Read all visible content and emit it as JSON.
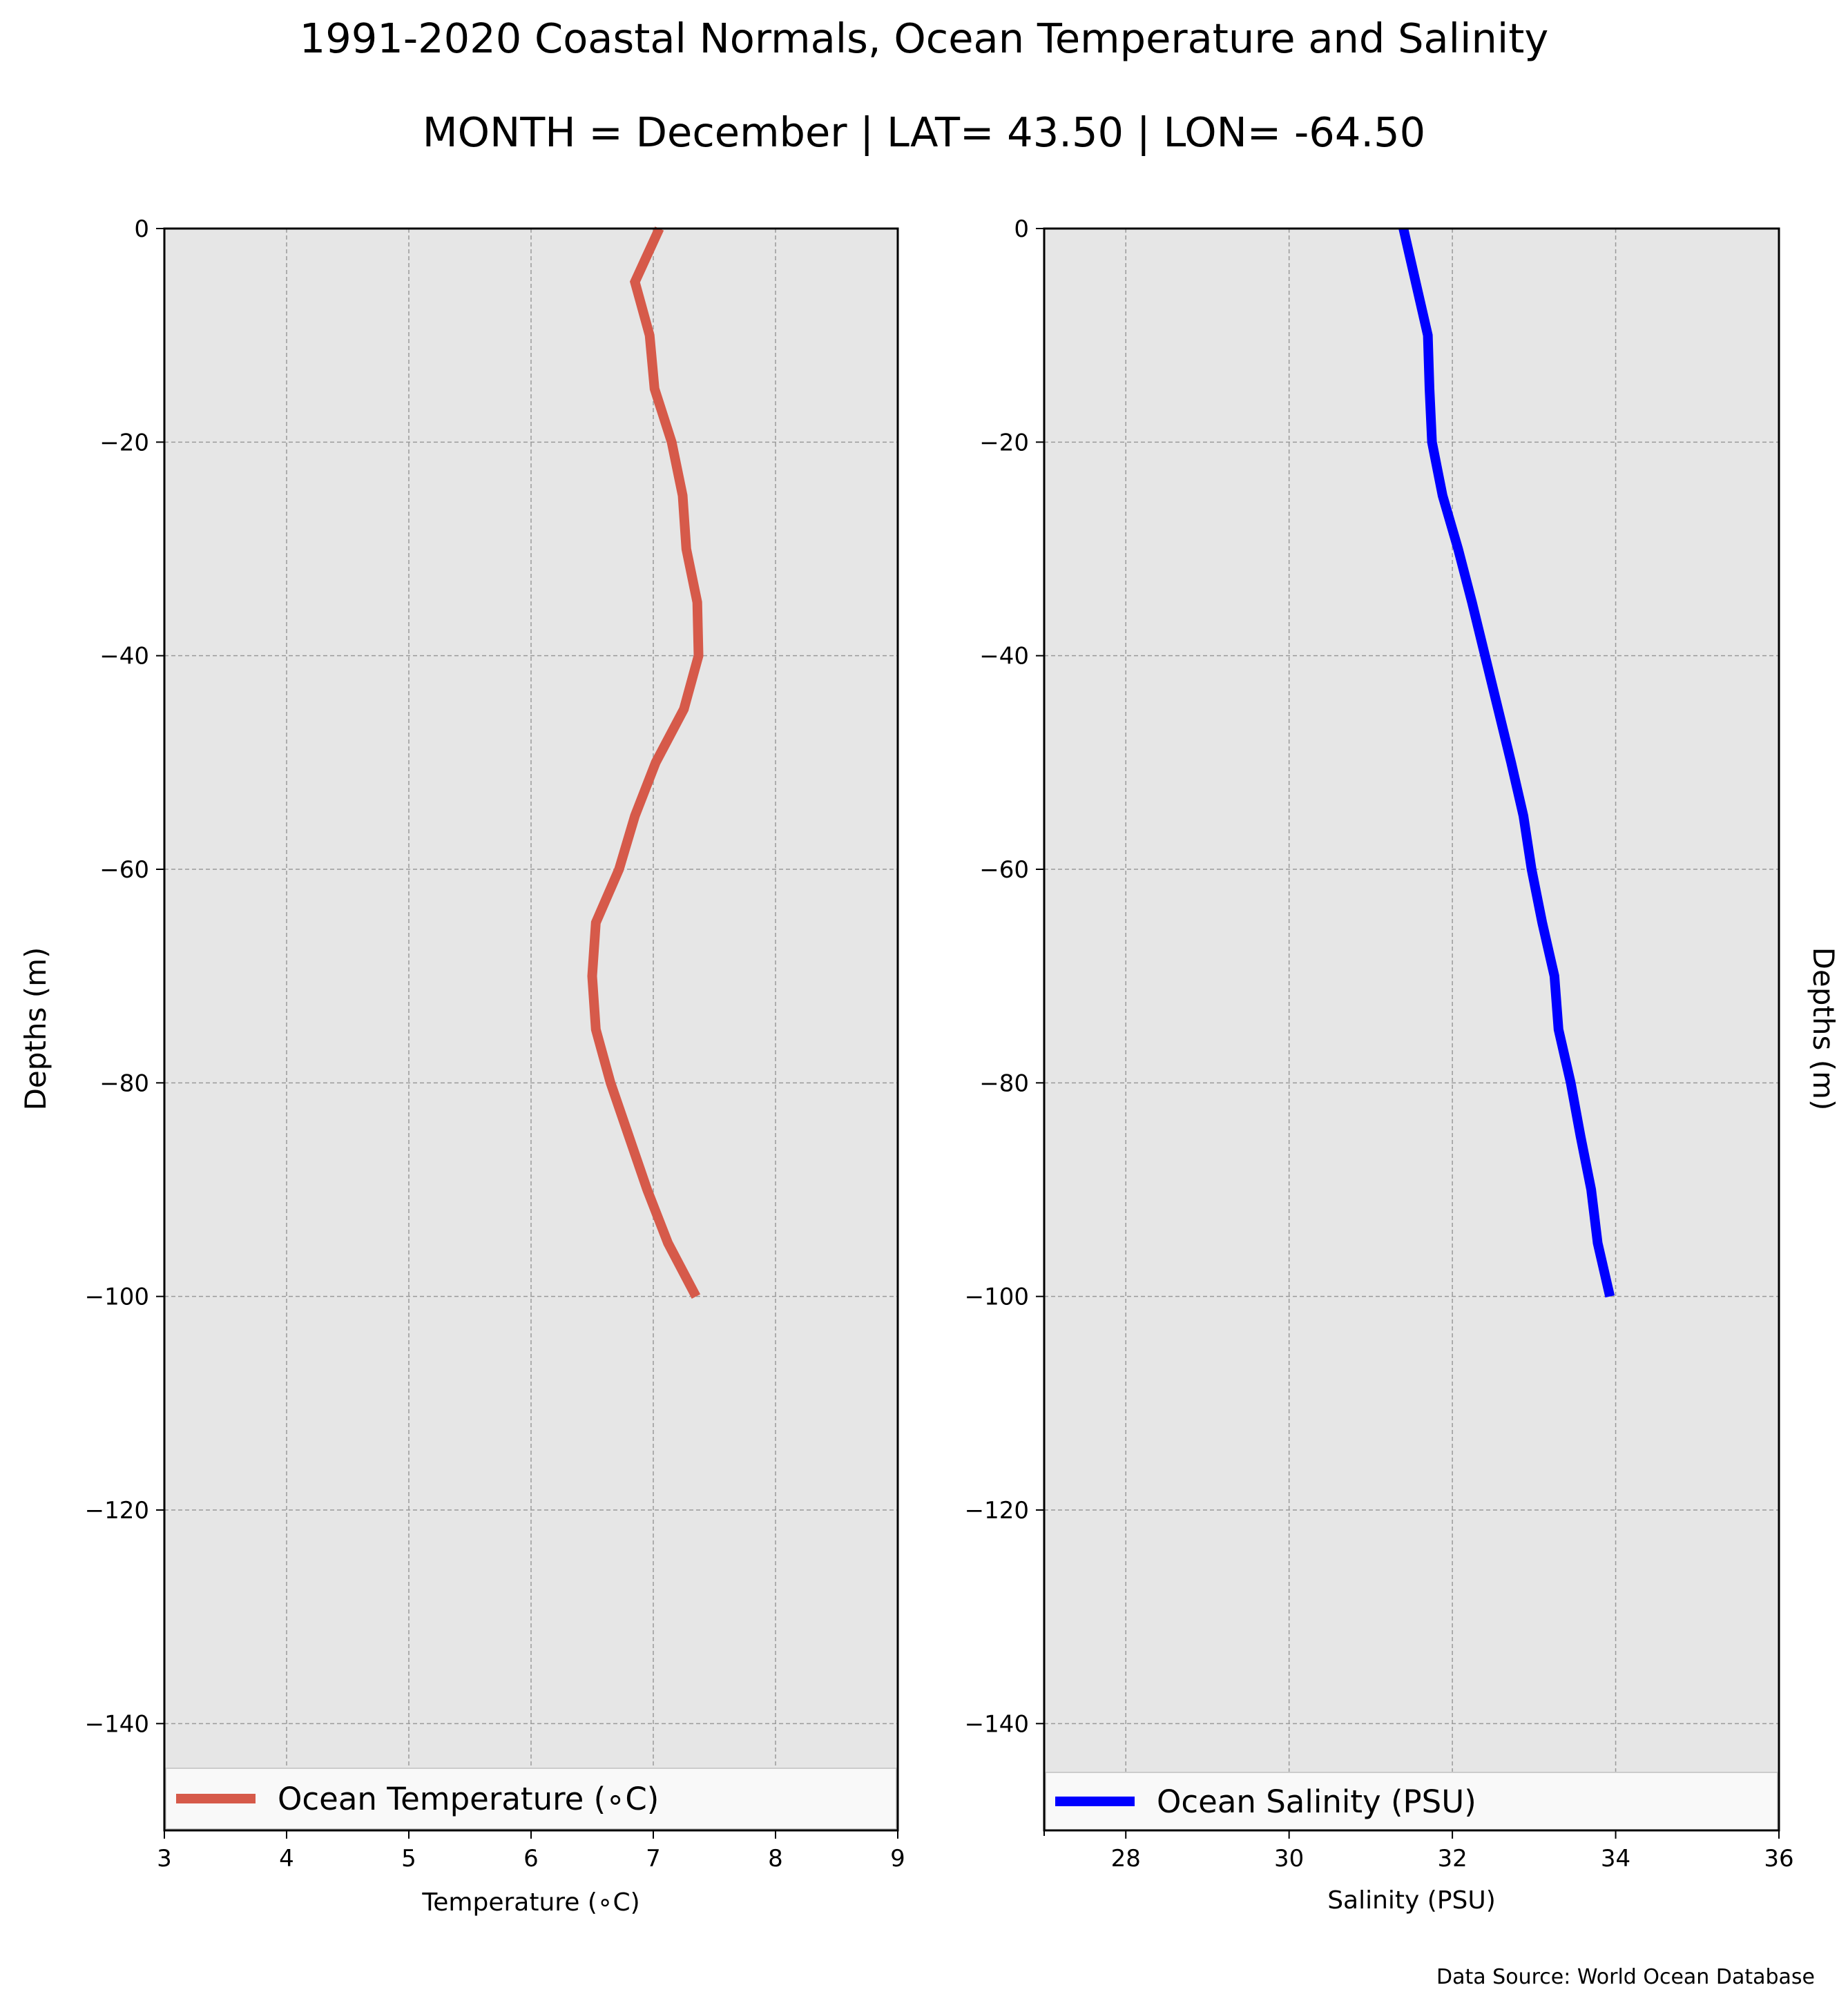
{
  "title": "1991-2020 Coastal Normals, Ocean Temperature and Salinity",
  "subtitle": "MONTH = December | LAT= 43.50 | LON= -64.50",
  "source": "Data Source: World Ocean Database",
  "colors": {
    "temperature": "#d65a4a",
    "salinity": "#0000ff",
    "axes_bg": "#e6e6e6",
    "grid": "#9a9a9a"
  },
  "chart_data": [
    {
      "type": "line",
      "xlabel": "Temperature (∘C)",
      "ylabel": "Depths (m)",
      "xlim": [
        3,
        9
      ],
      "ylim": [
        -150,
        0
      ],
      "xticks": [
        3,
        4,
        5,
        6,
        7,
        8,
        9
      ],
      "yticks": [
        0,
        -20,
        -40,
        -60,
        -80,
        -100,
        -120,
        -140
      ],
      "xtick_labels": [
        "3",
        "4",
        "5",
        "6",
        "7",
        "8",
        "9"
      ],
      "ytick_labels": [
        "0",
        "−20",
        "−40",
        "−60",
        "−80",
        "−100",
        "−120",
        "−140"
      ],
      "grid": true,
      "legend_position": "lower",
      "series": [
        {
          "name": "Ocean Temperature (∘C)",
          "color": "#d65a4a",
          "x": [
            7.05,
            6.85,
            6.97,
            7.01,
            7.15,
            7.24,
            7.27,
            7.36,
            7.37,
            7.25,
            7.02,
            6.85,
            6.72,
            6.53,
            6.5,
            6.53,
            6.65,
            6.8,
            6.95,
            7.12,
            7.35
          ],
          "y": [
            0,
            -5,
            -10,
            -15,
            -20,
            -25,
            -30,
            -35,
            -40,
            -45,
            -50,
            -55,
            -60,
            -65,
            -70,
            -75,
            -80,
            -85,
            -90,
            -95,
            -100
          ]
        }
      ]
    },
    {
      "type": "line",
      "xlabel": "Salinity (PSU)",
      "ylabel": "Depths (m)",
      "xlim": [
        27,
        36
      ],
      "ylim": [
        -150,
        0
      ],
      "xticks": [
        28,
        30,
        32,
        34,
        36
      ],
      "yticks": [
        0,
        -20,
        -40,
        -60,
        -80,
        -100,
        -120,
        -140
      ],
      "xtick_labels": [
        "28",
        "30",
        "32",
        "34",
        "36"
      ],
      "ytick_labels": [
        "0",
        "−20",
        "−40",
        "−60",
        "−80",
        "−100",
        "−120",
        "−140"
      ],
      "grid": true,
      "legend_position": "lower",
      "series": [
        {
          "name": "Ocean Salinity (PSU)",
          "color": "#0000ff",
          "x": [
            31.4,
            31.55,
            31.7,
            31.72,
            31.75,
            31.88,
            32.07,
            32.24,
            32.4,
            32.56,
            32.72,
            32.87,
            32.97,
            33.1,
            33.25,
            33.3,
            33.45,
            33.57,
            33.7,
            33.78,
            33.93
          ],
          "y": [
            0,
            -5,
            -10,
            -15,
            -20,
            -25,
            -30,
            -35,
            -40,
            -45,
            -50,
            -55,
            -60,
            -65,
            -70,
            -75,
            -80,
            -85,
            -90,
            -95,
            -100
          ]
        }
      ]
    }
  ]
}
